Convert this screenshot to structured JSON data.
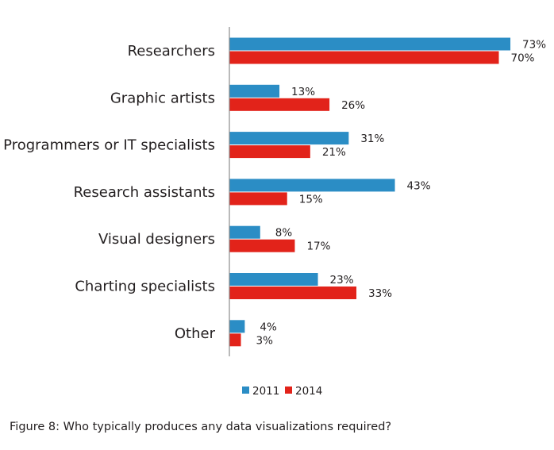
{
  "caption": "Figure 8: Who typically produces any data visualizations required?",
  "colors": {
    "series_2011": "#2b8dc5",
    "series_2014": "#e2231a",
    "axis": "#8c8c8c",
    "text": "#231f20"
  },
  "chart_data": {
    "type": "bar",
    "orientation": "horizontal",
    "title": "",
    "xlabel": "",
    "ylabel": "",
    "xlim": [
      0,
      75
    ],
    "grid": false,
    "legend_position": "bottom",
    "value_suffix": "%",
    "categories": [
      "Researchers",
      "Graphic artists",
      "Programmers or IT specialists",
      "Research assistants",
      "Visual designers",
      "Charting specialists",
      "Other"
    ],
    "series": [
      {
        "name": "2011",
        "color": "#2b8dc5",
        "values": [
          73,
          13,
          31,
          43,
          8,
          23,
          4
        ],
        "labels": [
          "73%",
          "13%",
          "31%",
          "43%",
          "8%",
          "23%",
          "4%"
        ]
      },
      {
        "name": "2014",
        "color": "#e2231a",
        "values": [
          70,
          26,
          21,
          15,
          17,
          33,
          3
        ],
        "labels": [
          "70%",
          "26%",
          "21%",
          "15%",
          "17%",
          "33%",
          "3%"
        ]
      }
    ]
  }
}
